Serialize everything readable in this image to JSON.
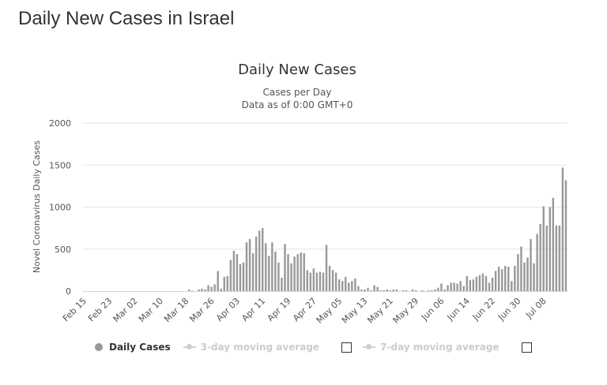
{
  "page": {
    "heading": "Daily New Cases in Israel"
  },
  "legend": {
    "daily_cases": "Daily Cases",
    "avg3": "3-day moving average",
    "avg7": "7-day moving average"
  },
  "colors": {
    "bars": "#999999",
    "grid": "#e6e6e6",
    "legend_inactive": "#cccccc"
  },
  "chart_data": {
    "type": "bar",
    "title": "Daily New Cases",
    "subtitle": "Cases per Day",
    "subtitle2": "Data as of 0:00 GMT+0",
    "ylabel": "Novel Coronavirus Daily Cases",
    "xlabel": "",
    "ylim": [
      0,
      2000
    ],
    "yticks": [
      0,
      500,
      1000,
      1500,
      2000
    ],
    "grid": true,
    "legend_position": "bottom",
    "start_date": "Feb 15",
    "tick_labels": [
      "Feb 15",
      "Feb 23",
      "Mar 02",
      "Mar 10",
      "Mar 18",
      "Mar 26",
      "Apr 03",
      "Apr 11",
      "Apr 19",
      "Apr 27",
      "May 05",
      "May 13",
      "May 21",
      "May 29",
      "Jun 06",
      "Jun 14",
      "Jun 22",
      "Jun 30",
      "Jul 08"
    ],
    "series": [
      {
        "name": "Daily Cases",
        "values": [
          0,
          0,
          0,
          0,
          0,
          0,
          0,
          0,
          0,
          0,
          0,
          0,
          0,
          0,
          0,
          0,
          0,
          0,
          0,
          0,
          0,
          0,
          0,
          0,
          0,
          0,
          0,
          0,
          0,
          0,
          0,
          0,
          0,
          20,
          5,
          0,
          20,
          30,
          20,
          70,
          50,
          80,
          240,
          30,
          170,
          180,
          370,
          480,
          440,
          320,
          340,
          580,
          620,
          450,
          650,
          720,
          750,
          570,
          420,
          580,
          470,
          340,
          160,
          560,
          440,
          330,
          410,
          440,
          460,
          450,
          250,
          220,
          270,
          220,
          230,
          220,
          550,
          300,
          250,
          220,
          140,
          120,
          170,
          100,
          120,
          150,
          60,
          20,
          20,
          40,
          10,
          70,
          50,
          10,
          10,
          20,
          10,
          20,
          20,
          0,
          10,
          10,
          0,
          20,
          10,
          0,
          10,
          0,
          10,
          10,
          20,
          40,
          90,
          20,
          70,
          100,
          100,
          90,
          120,
          60,
          180,
          130,
          140,
          170,
          190,
          210,
          180,
          100,
          160,
          240,
          290,
          260,
          300,
          290,
          120,
          300,
          440,
          530,
          340,
          400,
          620,
          330,
          680,
          800,
          1010,
          780,
          1000,
          1110,
          780,
          780,
          1470,
          1320
        ]
      }
    ]
  }
}
